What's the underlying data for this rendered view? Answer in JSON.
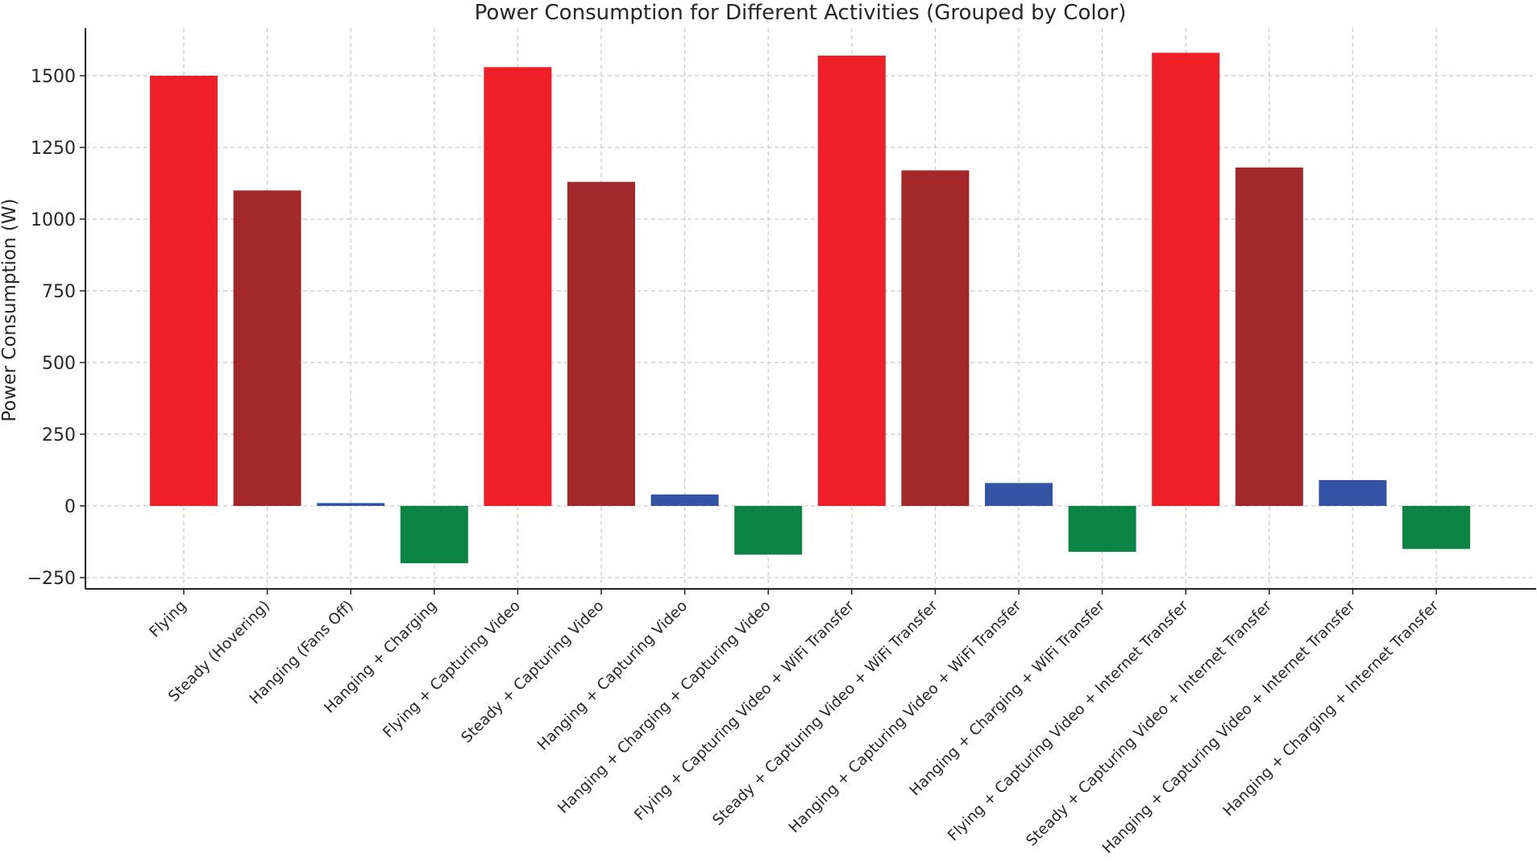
{
  "chart_data": {
    "type": "bar",
    "title": "Power Consumption for Different Activities (Grouped by Color)",
    "xlabel": "",
    "ylabel": "Power Consumption (W)",
    "ylim": [
      -290,
      1670
    ],
    "yticks": [
      -250,
      0,
      250,
      500,
      750,
      1000,
      1250,
      1500
    ],
    "ytick_labels": [
      "−250",
      "0",
      "250",
      "500",
      "750",
      "1000",
      "1250",
      "1500"
    ],
    "grid": true,
    "categories": [
      "Flying",
      "Steady (Hovering)",
      "Hanging (Fans Off)",
      "Hanging + Charging",
      "Flying + Capturing Video",
      "Steady + Capturing Video",
      "Hanging + Capturing Video",
      "Hanging + Charging + Capturing Video",
      "Flying + Capturing Video + WiFi Transfer",
      "Steady + Capturing Video + WiFi Transfer",
      "Hanging + Capturing Video + WiFi Transfer",
      "Hanging + Charging + WiFi Transfer",
      "Flying + Capturing Video + Internet Transfer",
      "Steady + Capturing Video + Internet Transfer",
      "Hanging + Capturing Video + Internet Transfer",
      "Hanging + Charging + Internet Transfer"
    ],
    "values": [
      1500,
      1100,
      10,
      -200,
      1530,
      1130,
      40,
      -170,
      1570,
      1170,
      80,
      -160,
      1580,
      1180,
      90,
      -150
    ],
    "colors": [
      "#ee1f26",
      "#a3282c",
      "#3353a4",
      "#0c8444",
      "#ee1f26",
      "#a3282c",
      "#3353a4",
      "#0c8444",
      "#ee1f26",
      "#a3282c",
      "#3353a4",
      "#0c8444",
      "#ee1f26",
      "#a3282c",
      "#3353a4",
      "#0c8444"
    ]
  }
}
